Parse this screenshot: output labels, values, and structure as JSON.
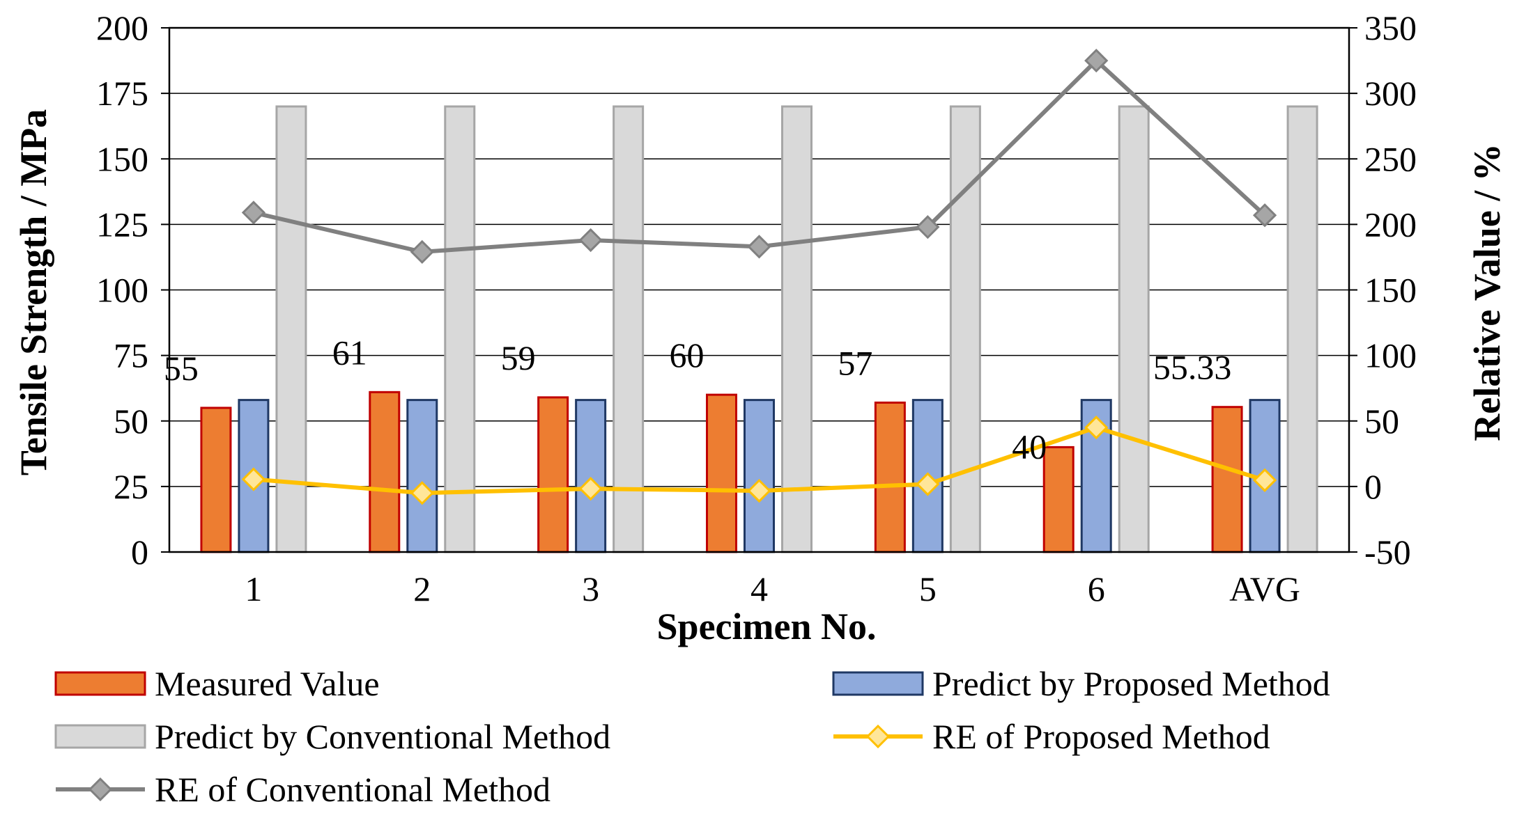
{
  "chart_data": {
    "type": "bar",
    "xlabel": "Specimen No.",
    "ylabel": "Tensile Strength / MPa",
    "y2label": "Relative Value / %",
    "categories": [
      "1",
      "2",
      "3",
      "4",
      "5",
      "6",
      "AVG"
    ],
    "ylim": [
      0,
      200
    ],
    "yticks": [
      "0",
      "25",
      "50",
      "75",
      "100",
      "125",
      "150",
      "175",
      "200"
    ],
    "y2lim": [
      -50,
      350
    ],
    "y2ticks": [
      "-50",
      "0",
      "50",
      "100",
      "150",
      "200",
      "250",
      "300",
      "350"
    ],
    "grid": "horizontal",
    "legend_position": "bottom",
    "series": [
      {
        "name": "Measured Value",
        "type": "bar",
        "axis": "left",
        "color": "#ED7D31",
        "edge": "#C00000",
        "values": [
          55,
          61,
          59,
          60,
          57,
          40,
          55.33
        ]
      },
      {
        "name": "Predict by Proposed Method",
        "type": "bar",
        "axis": "left",
        "color": "#8FAADC",
        "edge": "#1F3864",
        "values": [
          58,
          58,
          58,
          58,
          58,
          58,
          58
        ]
      },
      {
        "name": "Predict by Conventional Method",
        "type": "bar",
        "axis": "left",
        "color": "#D9D9D9",
        "edge": "#A6A6A6",
        "values": [
          170,
          170,
          170,
          170,
          170,
          170,
          170
        ]
      },
      {
        "name": "RE  of Proposed Method",
        "type": "line",
        "axis": "right",
        "color": "#FFC000",
        "marker_fill": "#FFE699",
        "values": [
          5.5,
          -5,
          -1.7,
          -3.3,
          1.8,
          45,
          4.8
        ]
      },
      {
        "name": "RE of Conventional Method",
        "type": "line",
        "axis": "right",
        "color": "#808080",
        "marker_fill": "#A6A6A6",
        "values": [
          209,
          179,
          188,
          183,
          198,
          325,
          207
        ]
      }
    ],
    "data_labels": [
      "55",
      "61",
      "59",
      "60",
      "57",
      "40",
      "55.33"
    ]
  }
}
